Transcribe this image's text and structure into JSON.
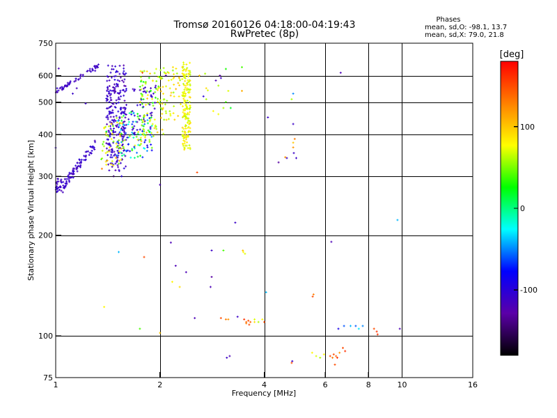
{
  "chart_data": {
    "type": "scatter",
    "title": "Tromsø 20160126 04:18:00-04:19:43",
    "subtitle": "RwPretec (8p)",
    "info": {
      "heading": "Phases",
      "line1": "mean, sd,O: -98.1, 13.7",
      "line2": "mean, sd,X:  79.0, 21.8"
    },
    "xlabel": "Frequency [MHz]",
    "ylabel": "Stationary phase Virtual Height [km]",
    "x_scale": "log",
    "y_scale": "log",
    "xlim": [
      1,
      16
    ],
    "ylim": [
      75,
      750
    ],
    "x_ticks": [
      1,
      2,
      4,
      6,
      8,
      10,
      16
    ],
    "x_ticklabels": [
      "1",
      "2",
      "4",
      "6",
      "8",
      "10",
      "16"
    ],
    "y_ticks": [
      75,
      100,
      200,
      300,
      400,
      500,
      600,
      750
    ],
    "y_ticklabels": [
      "75",
      "100",
      "200",
      "300",
      "400",
      "500",
      "600",
      "750"
    ],
    "grid": true,
    "colorbar": {
      "label": "[deg]",
      "range": [
        -180,
        180
      ],
      "ticks": [
        100,
        0,
        -100
      ],
      "ticklabels": [
        "100",
        "0",
        "-100"
      ],
      "colors": [
        "#000000",
        "#5b00a8",
        "#0000ff",
        "#00ffff",
        "#00ff00",
        "#ffff00",
        "#ff8000",
        "#ff0000"
      ]
    },
    "points": [
      [
        1.02,
        630,
        -120
      ],
      [
        1.12,
        530,
        -110
      ],
      [
        1.15,
        550,
        -115
      ],
      [
        1.0,
        365,
        -110
      ],
      [
        1.01,
        550,
        -105
      ],
      [
        1.3,
        620,
        -110
      ],
      [
        1.22,
        495,
        -110
      ],
      [
        1.4,
        408,
        20
      ],
      [
        1.36,
        316,
        130
      ],
      [
        1.55,
        300,
        -100
      ],
      [
        1.47,
        300,
        -150
      ],
      [
        1.17,
        337,
        -100
      ],
      [
        1.28,
        368,
        -95
      ],
      [
        1.78,
        612,
        150
      ],
      [
        1.95,
        628,
        70
      ],
      [
        2.05,
        632,
        60
      ],
      [
        2.18,
        636,
        90
      ],
      [
        2.08,
        600,
        -120
      ],
      [
        2.12,
        580,
        80
      ],
      [
        2.7,
        608,
        60
      ],
      [
        3.1,
        628,
        30
      ],
      [
        2.9,
        580,
        -120
      ],
      [
        2.95,
        560,
        60
      ],
      [
        3.15,
        540,
        70
      ],
      [
        2.98,
        600,
        -130
      ],
      [
        3.45,
        636,
        40
      ],
      [
        3.45,
        540,
        110
      ],
      [
        3.1,
        500,
        40
      ],
      [
        3.05,
        480,
        60
      ],
      [
        3.2,
        480,
        20
      ],
      [
        2.85,
        470,
        80
      ],
      [
        2.67,
        520,
        -100
      ],
      [
        2.72,
        510,
        60
      ],
      [
        2.6,
        600,
        100
      ],
      [
        2.75,
        542,
        70
      ],
      [
        3.0,
        590,
        -110
      ],
      [
        2.72,
        550,
        90
      ],
      [
        2.95,
        460,
        75
      ],
      [
        4.85,
        530,
        -50
      ],
      [
        4.8,
        510,
        60
      ],
      [
        4.85,
        430,
        -110
      ],
      [
        4.1,
        450,
        -110
      ],
      [
        4.9,
        388,
        130
      ],
      [
        4.85,
        378,
        100
      ],
      [
        4.85,
        366,
        120
      ],
      [
        4.65,
        340,
        -110
      ],
      [
        4.87,
        352,
        -110
      ],
      [
        4.95,
        340,
        -110
      ],
      [
        4.6,
        342,
        120
      ],
      [
        4.4,
        330,
        -130
      ],
      [
        6.65,
        612,
        -120
      ],
      [
        2.0,
        283,
        -120
      ],
      [
        2.56,
        308,
        150
      ],
      [
        3.3,
        218,
        -110
      ],
      [
        6.25,
        191,
        -120
      ],
      [
        9.7,
        222,
        -40
      ],
      [
        1.52,
        178,
        -40
      ],
      [
        1.8,
        172,
        150
      ],
      [
        2.15,
        190,
        -120
      ],
      [
        2.82,
        180,
        -110
      ],
      [
        3.05,
        180,
        40
      ],
      [
        3.48,
        178,
        80
      ],
      [
        3.52,
        176,
        70
      ],
      [
        3.47,
        180,
        100
      ],
      [
        2.22,
        162,
        -120
      ],
      [
        2.38,
        155,
        -120
      ],
      [
        2.82,
        150,
        -130
      ],
      [
        2.17,
        145,
        80
      ],
      [
        2.28,
        140,
        90
      ],
      [
        2.8,
        140,
        -120
      ],
      [
        4.05,
        135,
        -40
      ],
      [
        5.52,
        131,
        150
      ],
      [
        5.55,
        133,
        130
      ],
      [
        1.38,
        122,
        80
      ],
      [
        2.52,
        113,
        -120
      ],
      [
        3.0,
        113,
        150
      ],
      [
        3.1,
        112,
        130
      ],
      [
        3.15,
        112,
        120
      ],
      [
        3.35,
        114,
        -110
      ],
      [
        3.5,
        112,
        160
      ],
      [
        3.55,
        110,
        140
      ],
      [
        3.6,
        111,
        150
      ],
      [
        3.55,
        109,
        130
      ],
      [
        3.62,
        108,
        150
      ],
      [
        3.65,
        110,
        140
      ],
      [
        3.75,
        112,
        70
      ],
      [
        3.75,
        110,
        90
      ],
      [
        3.85,
        110,
        60
      ],
      [
        3.95,
        112,
        80
      ],
      [
        4.0,
        110,
        150
      ],
      [
        1.75,
        105,
        40
      ],
      [
        2.0,
        102,
        100
      ],
      [
        6.55,
        105,
        -90
      ],
      [
        6.8,
        107,
        -60
      ],
      [
        7.1,
        107,
        -40
      ],
      [
        7.35,
        107,
        -60
      ],
      [
        7.5,
        105,
        -30
      ],
      [
        7.7,
        107,
        -50
      ],
      [
        8.3,
        105,
        150
      ],
      [
        8.45,
        103,
        160
      ],
      [
        8.5,
        101,
        160
      ],
      [
        9.85,
        105,
        -120
      ],
      [
        3.12,
        86,
        -110
      ],
      [
        3.18,
        87,
        -120
      ],
      [
        4.82,
        84,
        -110
      ],
      [
        4.8,
        83,
        150
      ],
      [
        5.5,
        89,
        80
      ],
      [
        5.65,
        87,
        70
      ],
      [
        5.8,
        86,
        60
      ],
      [
        5.95,
        88,
        80
      ],
      [
        6.2,
        87,
        150
      ],
      [
        6.3,
        86,
        130
      ],
      [
        6.35,
        88,
        150
      ],
      [
        6.45,
        87,
        140
      ],
      [
        6.5,
        86,
        160
      ],
      [
        6.6,
        89,
        120
      ],
      [
        6.85,
        90,
        160
      ],
      [
        6.75,
        92,
        150
      ],
      [
        6.4,
        82,
        150
      ]
    ],
    "clusters": [
      {
        "fmin": 1.0,
        "fmax": 1.05,
        "hmin": 268,
        "hmax": 295,
        "n": 30,
        "curve": false,
        "pmin": -120,
        "pmax": -100,
        "seed": 11
      },
      {
        "fmin": 1.05,
        "fmax": 1.3,
        "hmin": 280,
        "hmax": 375,
        "n": 85,
        "curve": true,
        "spread": 0.035,
        "pmin": -120,
        "pmax": -100,
        "seed": 12
      },
      {
        "fmin": 1.0,
        "fmax": 1.33,
        "hmin": 535,
        "hmax": 645,
        "n": 55,
        "curve": true,
        "spread": 0.012,
        "pmin": -120,
        "pmax": -105,
        "seed": 13
      },
      {
        "fmin": 1.4,
        "fmax": 1.6,
        "hmin": 310,
        "hmax": 645,
        "n": 260,
        "curve": false,
        "pmin": -125,
        "pmax": -95,
        "seed": 14
      },
      {
        "fmin": 1.5,
        "fmax": 1.9,
        "hmin": 340,
        "hmax": 470,
        "n": 110,
        "curve": false,
        "pmin": -110,
        "pmax": 90,
        "seed": 15
      },
      {
        "fmin": 1.35,
        "fmax": 1.55,
        "hmin": 320,
        "hmax": 440,
        "n": 45,
        "curve": false,
        "pmin": 40,
        "pmax": 110,
        "seed": 16
      },
      {
        "fmin": 1.75,
        "fmax": 2.05,
        "hmin": 380,
        "hmax": 620,
        "n": 90,
        "curve": false,
        "pmin": 20,
        "pmax": 100,
        "seed": 17
      },
      {
        "fmin": 2.0,
        "fmax": 2.3,
        "hmin": 440,
        "hmax": 630,
        "n": 55,
        "curve": false,
        "pmin": 50,
        "pmax": 110,
        "seed": 18
      },
      {
        "fmin": 2.32,
        "fmax": 2.45,
        "hmin": 360,
        "hmax": 660,
        "n": 170,
        "curve": false,
        "pmin": 60,
        "pmax": 95,
        "seed": 19
      },
      {
        "fmin": 1.65,
        "fmax": 1.95,
        "hmin": 400,
        "hmax": 560,
        "n": 40,
        "curve": false,
        "pmin": -120,
        "pmax": -100,
        "seed": 20
      }
    ]
  }
}
